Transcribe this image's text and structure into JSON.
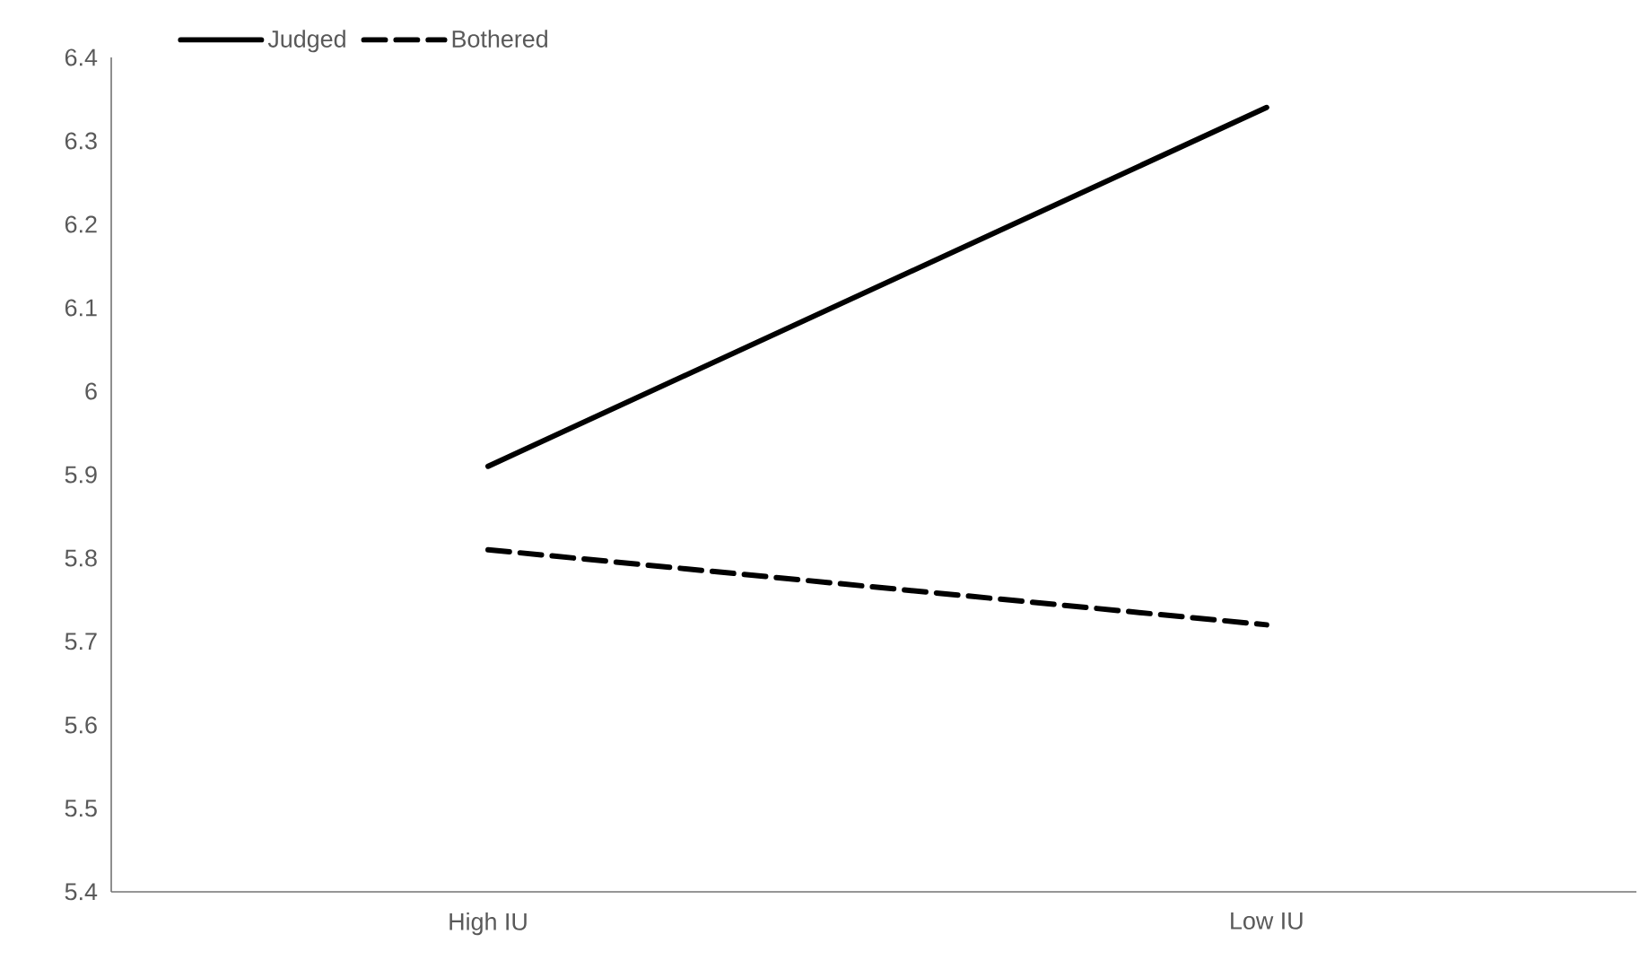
{
  "chart_data": {
    "type": "line",
    "categories": [
      "High IU",
      "Low IU"
    ],
    "series": [
      {
        "name": "Judged",
        "color": "#000000",
        "line_style": "solid",
        "values": [
          5.91,
          6.34
        ]
      },
      {
        "name": "Bothered",
        "color": "#000000",
        "line_style": "dashed",
        "values": [
          5.81,
          5.72
        ]
      }
    ],
    "ylim": [
      5.4,
      6.4
    ],
    "yticks": [
      5.4,
      5.5,
      5.6,
      5.7,
      5.8,
      5.9,
      6,
      6.1,
      6.2,
      6.3,
      6.4
    ],
    "grid": false,
    "legend": "top left",
    "marker": "none"
  }
}
